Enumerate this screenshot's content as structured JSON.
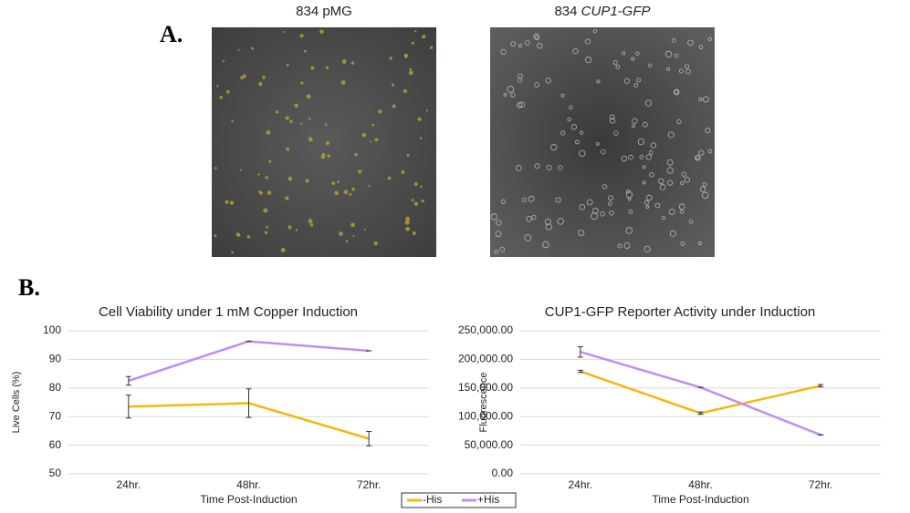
{
  "panels": {
    "a": {
      "label": "A.",
      "images": [
        {
          "title": "834 pMG"
        },
        {
          "title_plain": "834 ",
          "title_italic": "CUP1-GFP"
        }
      ]
    },
    "b": {
      "label": "B."
    }
  },
  "chart_data": [
    {
      "type": "line",
      "title": "Cell Viability under 1 mM Copper Induction",
      "x_label": "Time Post-Induction",
      "y_label": "Live Cells (%)",
      "categories": [
        "24hr.",
        "48hr.",
        "72hr."
      ],
      "ylim": [
        50,
        100
      ],
      "yticks": [
        50,
        60,
        70,
        80,
        90,
        100
      ],
      "grid": true,
      "series": [
        {
          "name": "-His",
          "color": "#f5b70f",
          "values": [
            73.5,
            74.7,
            62.3
          ],
          "errors": [
            4,
            5,
            2.5
          ]
        },
        {
          "name": "+His",
          "color": "#c48cf0",
          "values": [
            82.5,
            96.3,
            93
          ],
          "errors": [
            1.5,
            0,
            0
          ]
        }
      ]
    },
    {
      "type": "line",
      "title": "CUP1-GFP Reporter Activity under Induction",
      "x_label": "Time Post-Induction",
      "y_label": "Fluorescence",
      "categories": [
        "24hr.",
        "48hr.",
        "72hr."
      ],
      "ylim": [
        0,
        250000
      ],
      "yticks": [
        {
          "value": 0,
          "label": "0.00"
        },
        {
          "value": 50000,
          "label": "50,000.00"
        },
        {
          "value": 100000,
          "label": "100,000.00"
        },
        {
          "value": 150000,
          "label": "150,000.00"
        },
        {
          "value": 200000,
          "label": "200,000.00"
        },
        {
          "value": 250000,
          "label": "250,000.00"
        }
      ],
      "grid": true,
      "series": [
        {
          "name": "-His",
          "color": "#f5b70f",
          "values": [
            179000,
            106000,
            154000
          ],
          "errors": [
            2000,
            2000,
            2000
          ]
        },
        {
          "name": "+His",
          "color": "#c48cf0",
          "values": [
            213000,
            151000,
            68000
          ],
          "errors": [
            9000,
            0,
            0
          ]
        }
      ]
    }
  ]
}
